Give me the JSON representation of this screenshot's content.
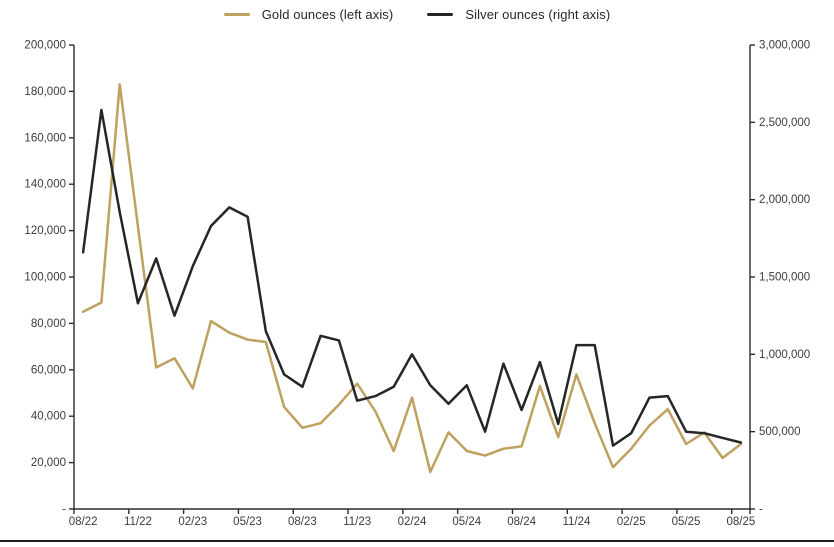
{
  "legend": [
    {
      "label": "Gold ounces (left axis)",
      "color": "#BFA15F"
    },
    {
      "label": "Silver ounces (right axis)",
      "color": "#262626"
    }
  ],
  "chart_data": {
    "type": "line",
    "title": "",
    "x": [
      "08/22",
      "09/22",
      "10/22",
      "11/22",
      "12/22",
      "01/23",
      "02/23",
      "03/23",
      "04/23",
      "05/23",
      "06/23",
      "07/23",
      "08/23",
      "09/23",
      "10/23",
      "11/23",
      "12/23",
      "01/24",
      "02/24",
      "03/24",
      "04/24",
      "05/24",
      "06/24",
      "07/24",
      "08/24",
      "09/24",
      "10/24",
      "11/24",
      "12/24",
      "01/25",
      "02/25",
      "03/25",
      "04/25",
      "05/25",
      "06/25",
      "07/25",
      "08/25"
    ],
    "x_axis_tick_labels": [
      "08/22",
      "11/22",
      "02/23",
      "05/23",
      "08/23",
      "11/23",
      "02/24",
      "05/24",
      "08/24",
      "11/24",
      "02/25",
      "05/25",
      "08/25"
    ],
    "series": [
      {
        "name": "Gold ounces (left axis)",
        "axis": "left",
        "color": "#BFA15F",
        "values": [
          85000,
          89000,
          183000,
          122000,
          61000,
          65000,
          52000,
          81000,
          76000,
          73000,
          72000,
          44000,
          35000,
          37000,
          45000,
          54000,
          42000,
          25000,
          48000,
          16000,
          33000,
          25000,
          23000,
          26000,
          27000,
          53000,
          31000,
          58000,
          37000,
          18000,
          26000,
          36000,
          43000,
          28000,
          33000,
          22000,
          28000
        ]
      },
      {
        "name": "Silver ounces (right axis)",
        "axis": "right",
        "color": "#262626",
        "values": [
          1660000,
          2580000,
          1920000,
          1330000,
          1620000,
          1250000,
          1570000,
          1830000,
          1950000,
          1890000,
          1150000,
          870000,
          790000,
          1120000,
          1090000,
          700000,
          730000,
          790000,
          1000000,
          800000,
          680000,
          800000,
          500000,
          940000,
          640000,
          950000,
          550000,
          1060000,
          1060000,
          410000,
          490000,
          720000,
          730000,
          500000,
          490000,
          460000,
          430000
        ]
      }
    ],
    "left_axis": {
      "min": 0,
      "max": 200000,
      "step": 20000,
      "tick_labels": [
        "200,000",
        "180,000",
        "160,000",
        "140,000",
        "120,000",
        "100,000",
        "80,000",
        "60,000",
        "40,000",
        "20,000",
        "-"
      ]
    },
    "right_axis": {
      "min": 0,
      "max": 3000000,
      "step": 500000,
      "tick_labels": [
        "3,000,000",
        "2,500,000",
        "2,000,000",
        "1,500,000",
        "1,000,000",
        "500,000",
        "-"
      ]
    },
    "grid": false,
    "legend_position": "top"
  },
  "colors": {
    "axis_line": "#2b2b2b",
    "tick_text": "#3c3c3c",
    "bottom_bar": "#1e1e26",
    "background": "#ffffff"
  }
}
